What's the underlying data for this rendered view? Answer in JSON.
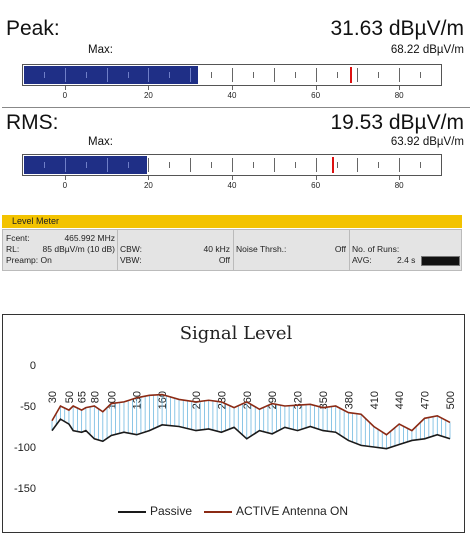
{
  "peak": {
    "label": "Peak:",
    "value": "31.63 dBµV/m",
    "max_label": "Max:",
    "max_value": "68.22 dBµV/m",
    "level": 31.63,
    "max": 68.22
  },
  "rms": {
    "label": "RMS:",
    "value": "19.53 dBµV/m",
    "max_label": "Max:",
    "max_value": "63.92 dBµV/m",
    "level": 19.53,
    "max": 63.92
  },
  "scale": {
    "min": -10,
    "max": 90,
    "labels": [
      "0",
      "20",
      "40",
      "60",
      "80"
    ],
    "values": [
      0,
      20,
      40,
      60,
      80
    ]
  },
  "level_meter": {
    "title": "Level Meter",
    "fcent_label": "Fcent:",
    "fcent_value": "465.992 MHz",
    "rl_label": "RL:",
    "rl_value": "85 dBµV/m (10 dB)",
    "preamp": "Preamp: On",
    "cbw_label": "CBW:",
    "cbw_value": "40 kHz",
    "vbw_label": "VBW:",
    "vbw_value": "Off",
    "noise_label": "Noise Thrsh.:",
    "noise_value": "Off",
    "runs_label": "No. of Runs:",
    "avg_label": "AVG:",
    "avg_value": "2.4 s",
    "bar_color": "#f3c300"
  },
  "chart_data": {
    "type": "line",
    "title": "Signal  Level",
    "ylim": [
      -150,
      0
    ],
    "yticks": [
      0,
      -50,
      -100,
      -150
    ],
    "x_tick_labels": [
      "30",
      "50",
      "65",
      "80",
      "100",
      "130",
      "160",
      "200",
      "230",
      "260",
      "290",
      "320",
      "350",
      "380",
      "410",
      "440",
      "470",
      "500"
    ],
    "x": [
      30,
      40,
      50,
      55,
      65,
      70,
      80,
      90,
      100,
      115,
      130,
      145,
      160,
      180,
      200,
      215,
      230,
      245,
      260,
      275,
      290,
      305,
      320,
      335,
      350,
      365,
      380,
      395,
      410,
      425,
      440,
      455,
      470,
      485,
      500
    ],
    "series": [
      {
        "name": "Passive",
        "color": "#1a1a1a",
        "values": [
          -80,
          -66,
          -72,
          -80,
          -82,
          -80,
          -90,
          -93,
          -86,
          -82,
          -85,
          -80,
          -73,
          -75,
          -80,
          -78,
          -82,
          -76,
          -90,
          -80,
          -84,
          -76,
          -80,
          -75,
          -80,
          -82,
          -92,
          -98,
          -100,
          -102,
          -97,
          -92,
          -90,
          -85,
          -90
        ]
      },
      {
        "name": "ACTIVE Antenna ON",
        "color": "#8b2a14",
        "values": [
          -68,
          -50,
          -55,
          -50,
          -55,
          -52,
          -50,
          -57,
          -47,
          -45,
          -40,
          -37,
          -36,
          -42,
          -45,
          -43,
          -45,
          -52,
          -45,
          -54,
          -47,
          -50,
          -49,
          -48,
          -52,
          -50,
          -58,
          -60,
          -75,
          -85,
          -72,
          -80,
          -65,
          -62,
          -70
        ]
      }
    ],
    "fill_color": "#6fb8e0"
  }
}
